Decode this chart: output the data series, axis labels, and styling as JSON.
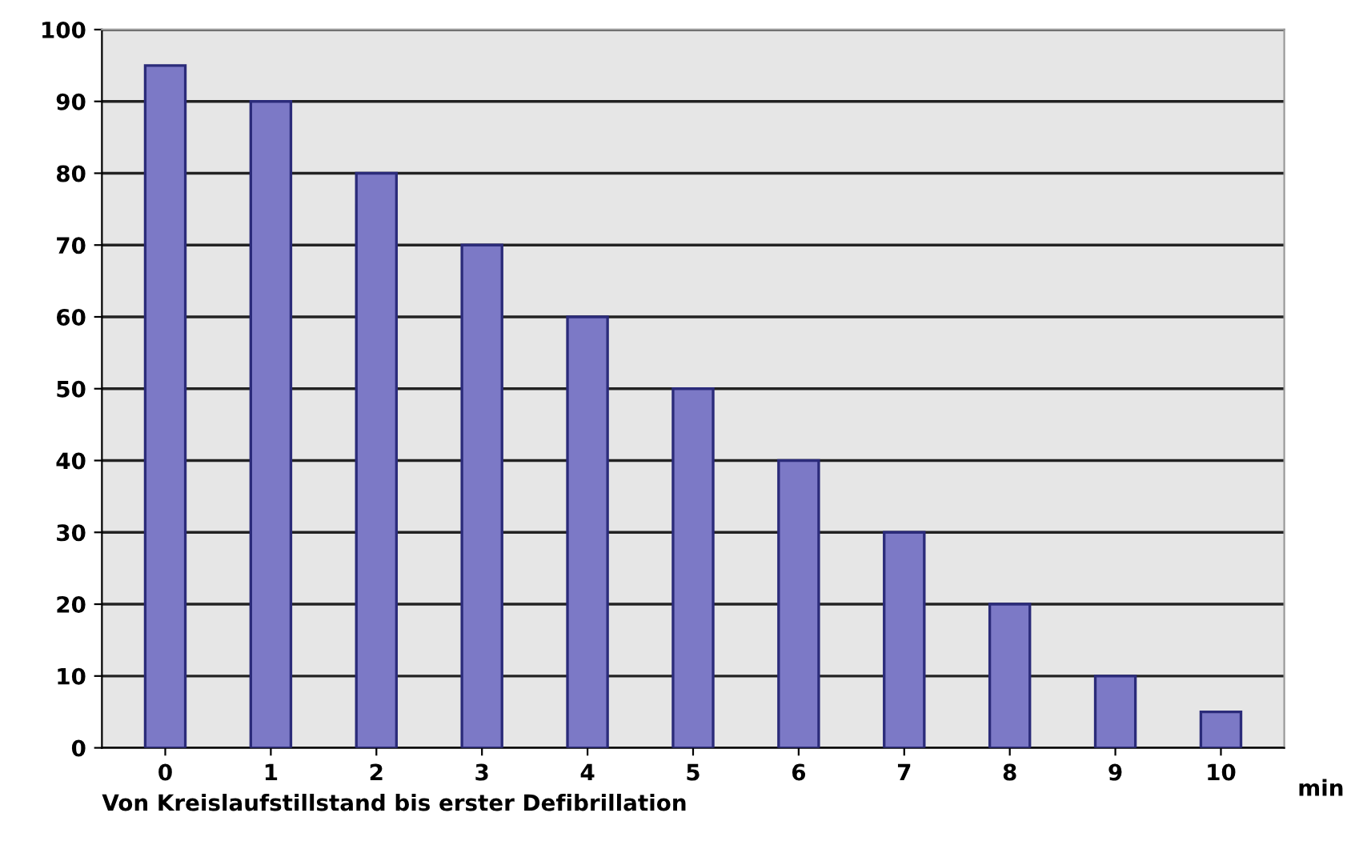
{
  "chart_data": {
    "type": "bar",
    "xlabel": "Von Kreislaufstillstand bis erster Defibrillation",
    "annotations": [
      "min"
    ],
    "categories": [
      "0",
      "1",
      "2",
      "3",
      "4",
      "5",
      "6",
      "7",
      "8",
      "9",
      "10"
    ],
    "values": [
      95,
      90,
      80,
      70,
      60,
      50,
      40,
      30,
      20,
      10,
      5
    ],
    "color": "#7c79c6",
    "ylim": [
      0,
      100
    ],
    "yticks": [
      0,
      10,
      20,
      30,
      40,
      50,
      60,
      70,
      80,
      90,
      100
    ],
    "grid": "y"
  }
}
